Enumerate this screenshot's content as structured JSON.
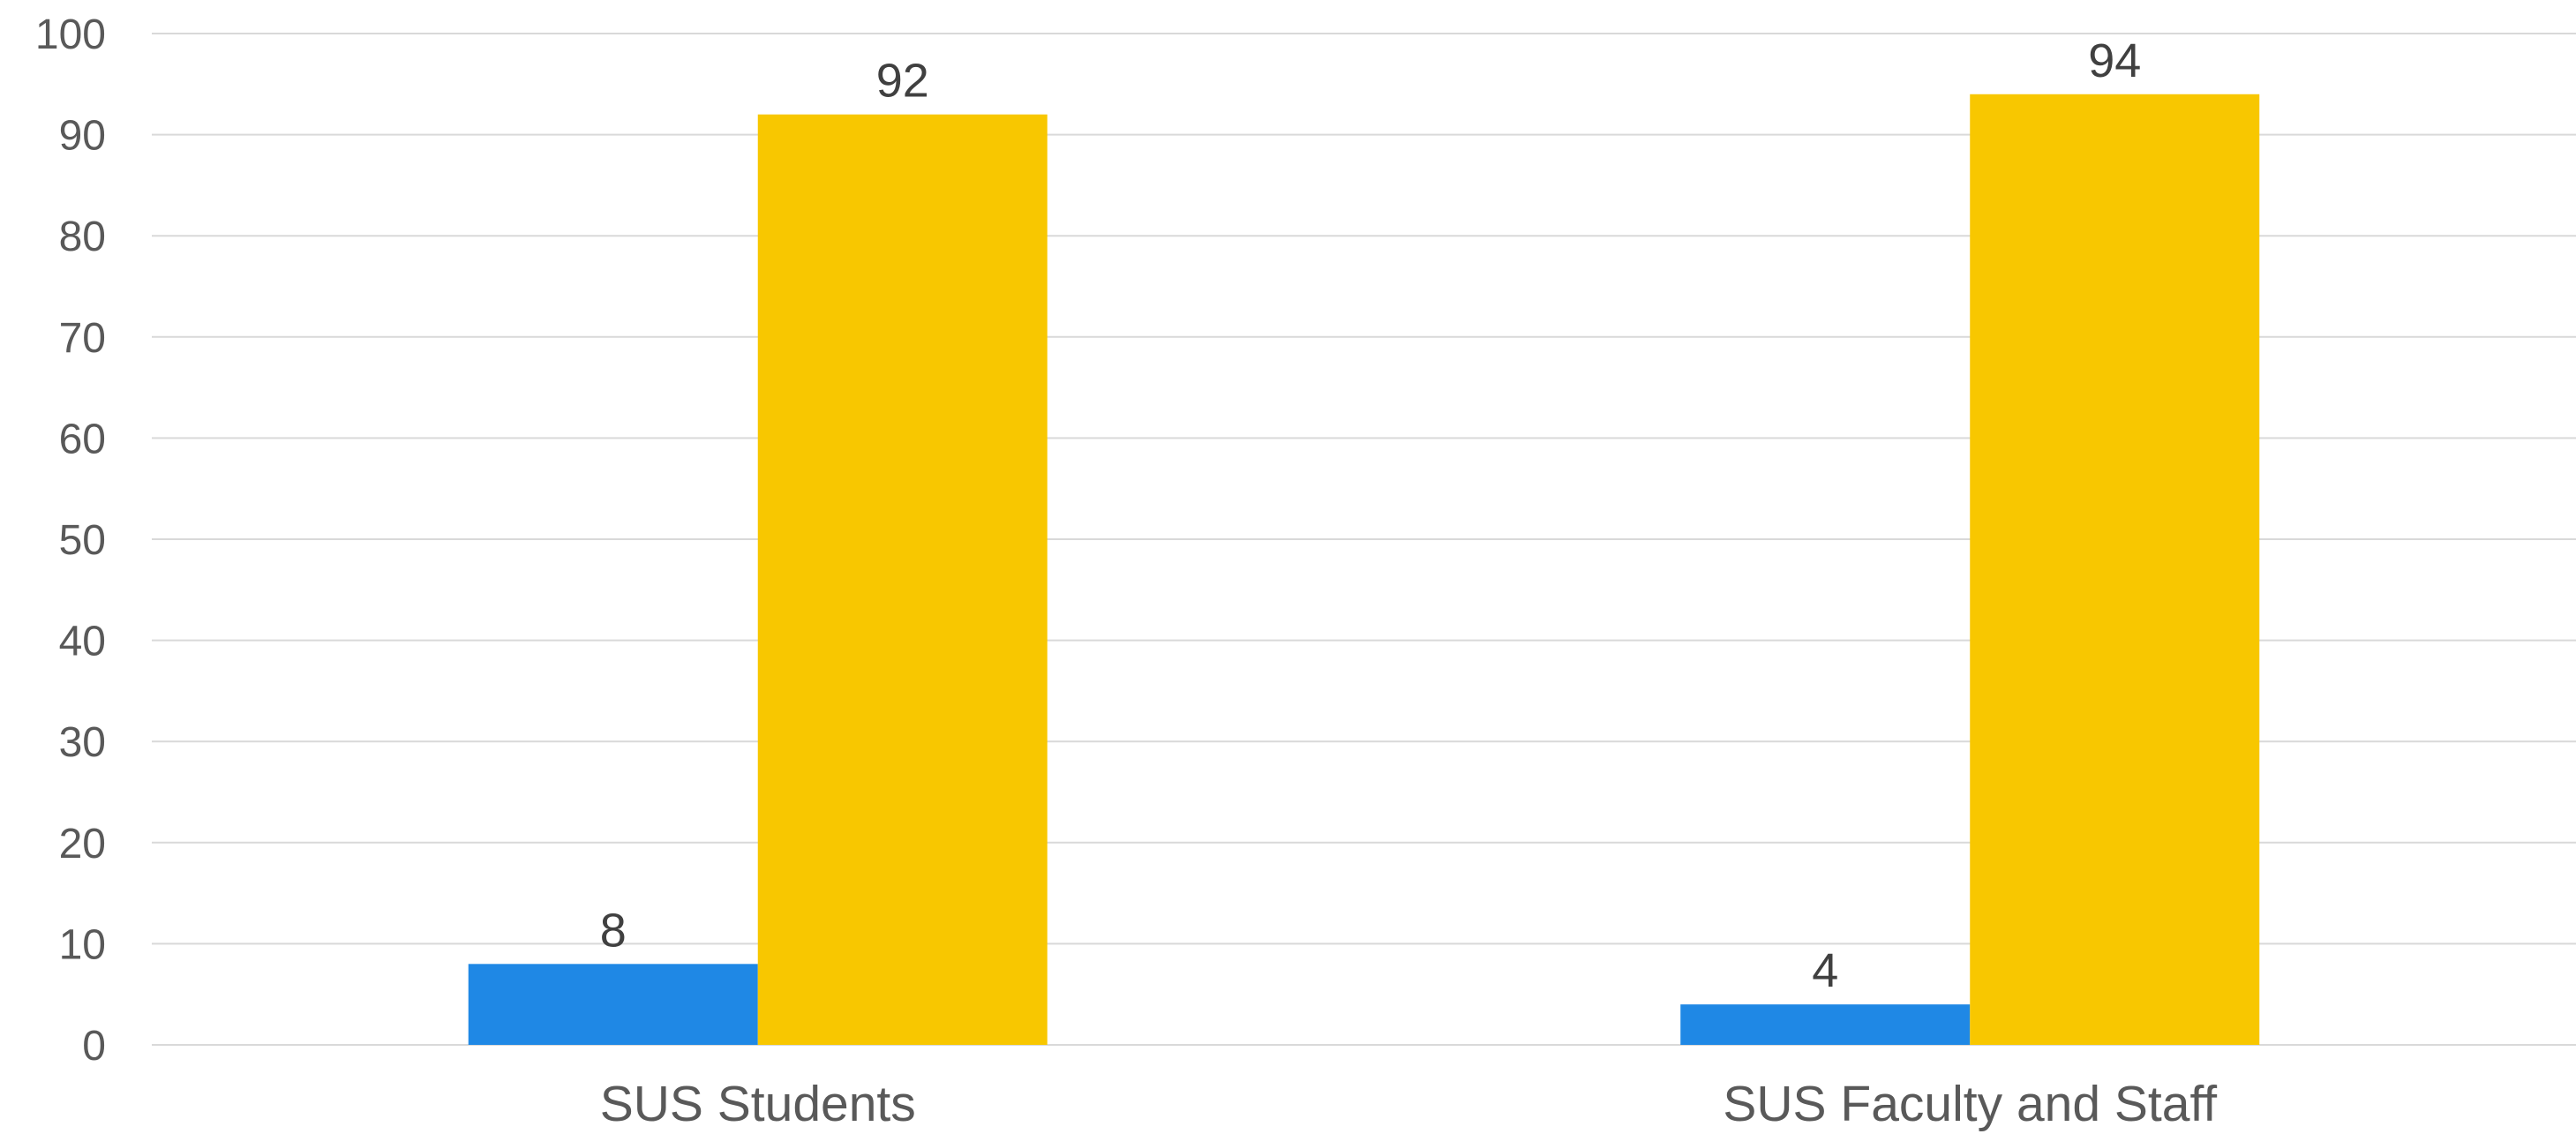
{
  "chart_data": {
    "type": "bar",
    "title": "",
    "xlabel": "",
    "ylabel": "",
    "categories": [
      "SUS Students",
      "SUS Faculty and Staff"
    ],
    "series": [
      {
        "values": [
          8,
          4
        ],
        "color": "#1f88e5"
      },
      {
        "values": [
          92,
          94
        ],
        "color": "#f8c700"
      }
    ],
    "ylim": [
      0,
      100
    ],
    "yticks": [
      0,
      10,
      20,
      30,
      40,
      50,
      60,
      70,
      80,
      90,
      100
    ],
    "grid": true,
    "legend": "none",
    "data_labels": true
  }
}
